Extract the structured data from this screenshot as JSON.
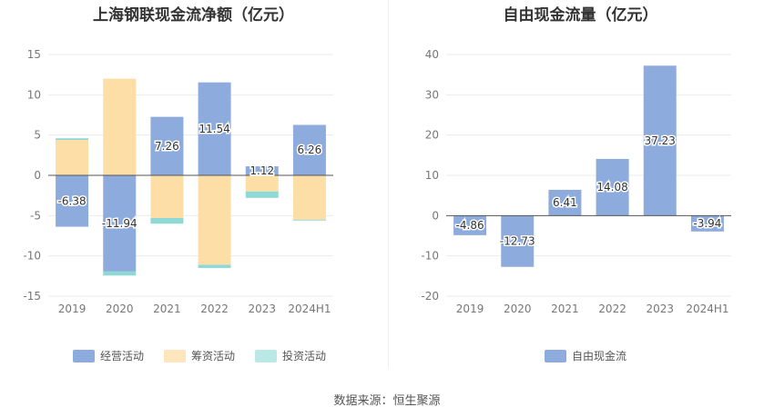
{
  "chart_data": [
    {
      "type": "bar",
      "stacked": true,
      "title": "上海钢联现金流净额（亿元）",
      "categories": [
        "2019",
        "2020",
        "2021",
        "2022",
        "2023",
        "2024H1"
      ],
      "ylim": [
        -15,
        15
      ],
      "yticks": [
        15,
        10,
        5,
        0,
        -5,
        -10,
        -15
      ],
      "grid": true,
      "legend_position": "bottom",
      "series": [
        {
          "name": "经营活动",
          "color": "#8eabdd",
          "values": [
            -6.38,
            -11.94,
            7.26,
            11.54,
            1.12,
            6.26
          ],
          "labels": [
            "-6.38",
            "-11.94",
            "7.26",
            "11.54",
            "1.12",
            "6.26"
          ]
        },
        {
          "name": "筹资活动",
          "color": "#fddea6",
          "values": [
            4.4,
            12.0,
            -5.3,
            -11.1,
            -2.0,
            -5.5
          ]
        },
        {
          "name": "投资活动",
          "color": "#8ed9d6",
          "values": [
            0.2,
            -0.5,
            -0.7,
            -0.4,
            -0.8,
            -0.1
          ]
        }
      ]
    },
    {
      "type": "bar",
      "title": "自由现金流量（亿元）",
      "categories": [
        "2019",
        "2020",
        "2021",
        "2022",
        "2023",
        "2024H1"
      ],
      "ylim": [
        -20,
        40
      ],
      "yticks": [
        40,
        30,
        20,
        10,
        0,
        -10,
        -20
      ],
      "grid": true,
      "legend_position": "bottom",
      "series": [
        {
          "name": "自由现金流",
          "color": "#8eabdd",
          "values": [
            -4.86,
            -12.73,
            6.41,
            14.08,
            37.23,
            -3.94
          ],
          "labels": [
            "-4.86",
            "-12.73",
            "6.41",
            "14.08",
            "37.23",
            "-3.94"
          ]
        }
      ]
    }
  ],
  "legend_left": {
    "items": [
      {
        "label": "经营活动",
        "color": "#8eabdd"
      },
      {
        "label": "筹资活动",
        "color": "#fde5bd"
      },
      {
        "label": "投资活动",
        "color": "#b9e8e6"
      }
    ]
  },
  "legend_right": {
    "items": [
      {
        "label": "自由现金流",
        "color": "#8eabdd"
      }
    ]
  },
  "source": "数据来源：恒生聚源"
}
